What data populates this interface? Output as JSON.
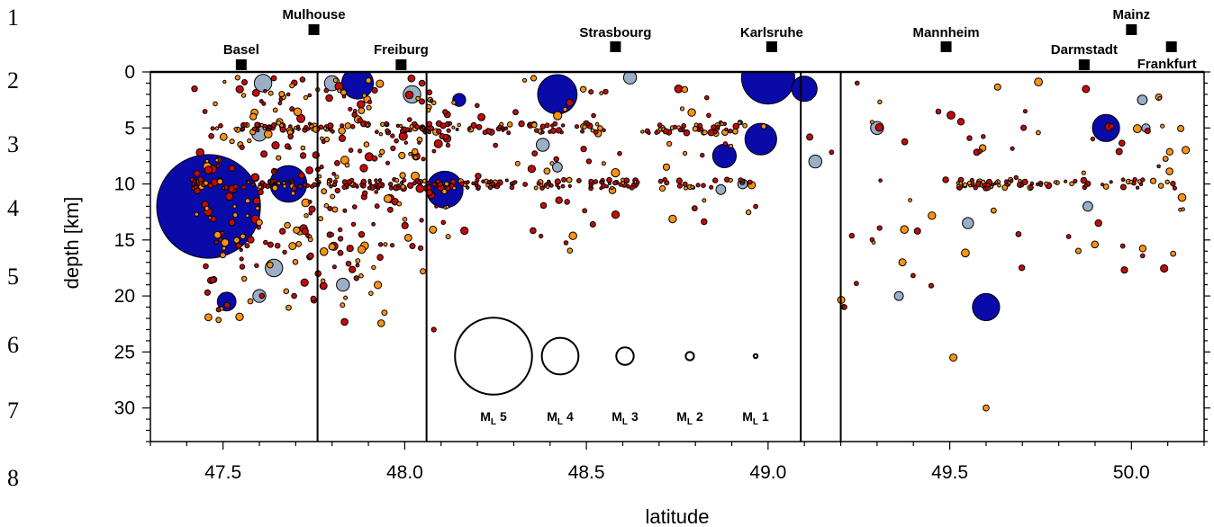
{
  "line_numbers": [
    "1",
    "2",
    "3",
    "4",
    "5",
    "6",
    "7",
    "8"
  ],
  "chart_data": {
    "type": "scatter",
    "title": "",
    "xlabel": "latitude",
    "ylabel": "depth [km]",
    "xlim": [
      47.3,
      50.2
    ],
    "ylim": [
      0,
      33
    ],
    "y_inverted": true,
    "x_ticks": [
      "47.5",
      "48.0",
      "48.5",
      "49.0",
      "49.5",
      "50.0"
    ],
    "y_ticks": [
      "0",
      "5",
      "10",
      "15",
      "20",
      "25",
      "30"
    ],
    "colors": {
      "blue": "#0a0aa8",
      "lightblue": "#9aaec6",
      "orange": "#ff9210",
      "red": "#c40a0a"
    },
    "section_boundaries": [
      47.76,
      48.06,
      49.09,
      49.2
    ],
    "cities": [
      {
        "name": "Basel",
        "lat": 47.55
      },
      {
        "name": "Mulhouse",
        "lat": 47.75
      },
      {
        "name": "Freiburg",
        "lat": 47.99
      },
      {
        "name": "Strasbourg",
        "lat": 48.58
      },
      {
        "name": "Karlsruhe",
        "lat": 49.01
      },
      {
        "name": "Mannheim",
        "lat": 49.49
      },
      {
        "name": "Darmstadt",
        "lat": 49.87
      },
      {
        "name": "Mainz",
        "lat": 50.0
      },
      {
        "name": "Frankfurt",
        "lat": 50.11
      }
    ],
    "legend": [
      {
        "label": "M",
        "sub": "L",
        "mag": "5",
        "value": 5
      },
      {
        "label": "M",
        "sub": "L",
        "mag": "4",
        "value": 4
      },
      {
        "label": "M",
        "sub": "L",
        "mag": "3",
        "value": 3
      },
      {
        "label": "M",
        "sub": "L",
        "mag": "2",
        "value": 2
      },
      {
        "label": "M",
        "sub": "L",
        "mag": "1",
        "value": 1
      }
    ],
    "big_events": [
      {
        "lat": 47.46,
        "depth": 12.0,
        "mag": 5.4,
        "color": "blue"
      },
      {
        "lat": 47.68,
        "depth": 10.0,
        "mag": 4.0,
        "color": "blue"
      },
      {
        "lat": 47.51,
        "depth": 20.5,
        "mag": 3.1,
        "color": "blue"
      },
      {
        "lat": 47.61,
        "depth": 1.0,
        "mag": 3.0,
        "color": "lightblue"
      },
      {
        "lat": 47.6,
        "depth": 5.5,
        "mag": 2.8,
        "color": "lightblue"
      },
      {
        "lat": 47.64,
        "depth": 17.5,
        "mag": 3.0,
        "color": "lightblue"
      },
      {
        "lat": 47.6,
        "depth": 20.0,
        "mag": 2.6,
        "color": "lightblue"
      },
      {
        "lat": 47.8,
        "depth": 1.0,
        "mag": 2.8,
        "color": "lightblue"
      },
      {
        "lat": 47.83,
        "depth": 19.0,
        "mag": 2.6,
        "color": "lightblue"
      },
      {
        "lat": 47.87,
        "depth": 1.0,
        "mag": 3.8,
        "color": "blue"
      },
      {
        "lat": 48.02,
        "depth": 2.0,
        "mag": 3.0,
        "color": "lightblue"
      },
      {
        "lat": 48.11,
        "depth": 10.5,
        "mag": 4.0,
        "color": "blue"
      },
      {
        "lat": 48.15,
        "depth": 2.5,
        "mag": 2.6,
        "color": "blue"
      },
      {
        "lat": 48.42,
        "depth": 2.0,
        "mag": 4.1,
        "color": "blue"
      },
      {
        "lat": 48.38,
        "depth": 6.5,
        "mag": 2.6,
        "color": "lightblue"
      },
      {
        "lat": 48.42,
        "depth": 8.5,
        "mag": 2.2,
        "color": "lightblue"
      },
      {
        "lat": 48.62,
        "depth": 0.5,
        "mag": 2.6,
        "color": "lightblue"
      },
      {
        "lat": 48.88,
        "depth": 7.5,
        "mag": 3.4,
        "color": "blue"
      },
      {
        "lat": 48.98,
        "depth": 6.0,
        "mag": 3.8,
        "color": "blue"
      },
      {
        "lat": 49.0,
        "depth": 0.5,
        "mag": 4.5,
        "color": "blue"
      },
      {
        "lat": 49.1,
        "depth": 1.5,
        "mag": 3.5,
        "color": "blue"
      },
      {
        "lat": 49.13,
        "depth": 8.0,
        "mag": 2.6,
        "color": "lightblue"
      },
      {
        "lat": 48.87,
        "depth": 10.5,
        "mag": 2.2,
        "color": "lightblue"
      },
      {
        "lat": 48.93,
        "depth": 10.0,
        "mag": 2.2,
        "color": "lightblue"
      },
      {
        "lat": 49.3,
        "depth": 5.0,
        "mag": 2.6,
        "color": "lightblue"
      },
      {
        "lat": 49.36,
        "depth": 20.0,
        "mag": 2.1,
        "color": "lightblue"
      },
      {
        "lat": 49.55,
        "depth": 13.5,
        "mag": 2.4,
        "color": "lightblue"
      },
      {
        "lat": 49.6,
        "depth": 21.0,
        "mag": 3.6,
        "color": "blue"
      },
      {
        "lat": 49.93,
        "depth": 5.0,
        "mag": 3.6,
        "color": "blue"
      },
      {
        "lat": 50.03,
        "depth": 2.5,
        "mag": 2.2,
        "color": "lightblue"
      },
      {
        "lat": 50.04,
        "depth": 5.0,
        "mag": 2.0,
        "color": "lightblue"
      },
      {
        "lat": 49.88,
        "depth": 12.0,
        "mag": 2.2,
        "color": "lightblue"
      }
    ],
    "small_events_description": "dense cluster of magnitude 0.5-2 events (orange and red) concentrated at depths 5 km and 10 km between latitudes 47.4 and 48.6, scattered events to 50.15"
  }
}
